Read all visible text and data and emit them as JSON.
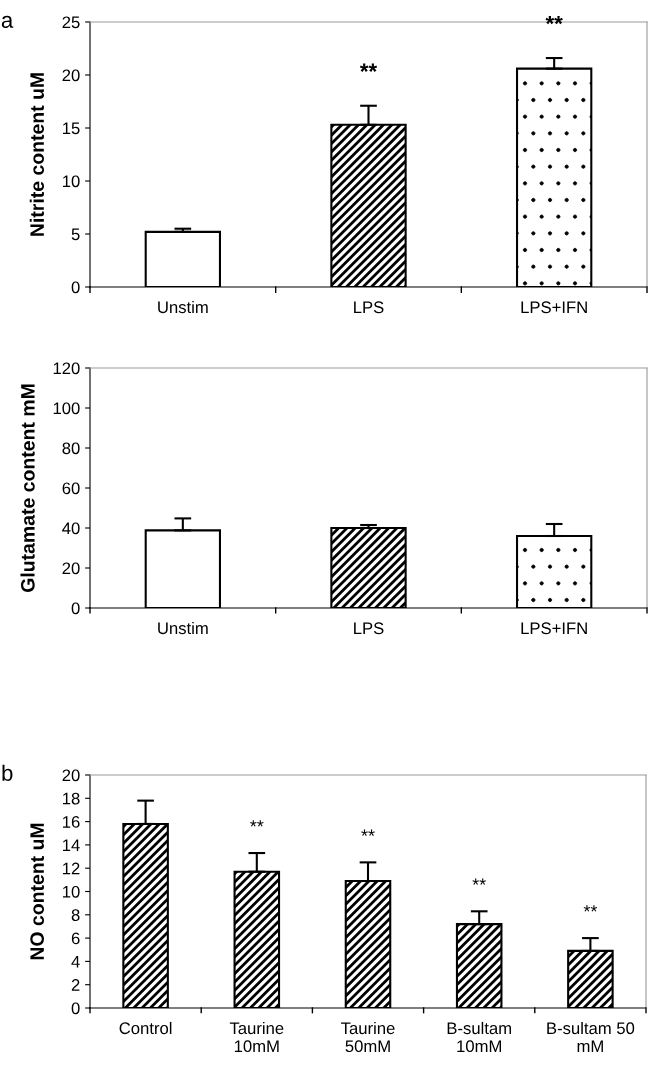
{
  "chart_data": [
    {
      "type": "bar",
      "ylabel": "Nitrite content uM",
      "categories": [
        "Unstim",
        "LPS",
        "LPS+IFN"
      ],
      "values": [
        5.2,
        15.3,
        20.6
      ],
      "errors": [
        0.3,
        1.8,
        1.0
      ],
      "colors": [
        "#ffffff",
        "#000000",
        "#000000"
      ],
      "ylim": [
        0,
        25
      ],
      "yticks": [
        0,
        5,
        10,
        15,
        20,
        25
      ],
      "grid": false,
      "legend": false,
      "annotations": [
        "a",
        {
          "text": "**",
          "x": "LPS",
          "y": 15.3
        },
        {
          "text": "**",
          "x": "LPS+IFN",
          "y": 20.6
        }
      ]
    },
    {
      "type": "bar",
      "ylabel": "Glutamate content mM",
      "categories": [
        "Unstim",
        "LPS",
        "LPS+IFN"
      ],
      "values": [
        38.8,
        40.0,
        36.0
      ],
      "errors": [
        6.0,
        1.5,
        6.0
      ],
      "colors": [
        "#ffffff",
        "#000000",
        "#000000"
      ],
      "ylim": [
        0,
        120
      ],
      "yticks": [
        0,
        20,
        40,
        60,
        80,
        100,
        120
      ],
      "grid": false,
      "legend": false
    },
    {
      "type": "bar",
      "ylabel": "NO content uM",
      "categories": [
        "Control",
        "Taurine\n10mM",
        "Taurine\n50mM",
        "B-sultam\n10mM",
        "B-sultam 50\nmM"
      ],
      "values": [
        15.8,
        11.7,
        10.9,
        7.2,
        4.9
      ],
      "errors": [
        2.0,
        1.6,
        1.6,
        1.1,
        1.1
      ],
      "colors": [
        "#000000",
        "#000000",
        "#000000",
        "#000000",
        "#000000"
      ],
      "ylim": [
        0,
        20
      ],
      "yticks": [
        0,
        2,
        4,
        6,
        8,
        10,
        12,
        14,
        16,
        18,
        20
      ],
      "grid": false,
      "legend": false,
      "annotations": [
        "b",
        {
          "text": "**",
          "x": "Taurine\n10mM",
          "y": 11.7
        },
        {
          "text": "**",
          "x": "Taurine\n50mM",
          "y": 10.9
        },
        {
          "text": "**",
          "x": "B-sultam\n10mM",
          "y": 7.2
        },
        {
          "text": "**",
          "x": "B-sultam 50\nmM",
          "y": 4.9
        }
      ]
    }
  ]
}
